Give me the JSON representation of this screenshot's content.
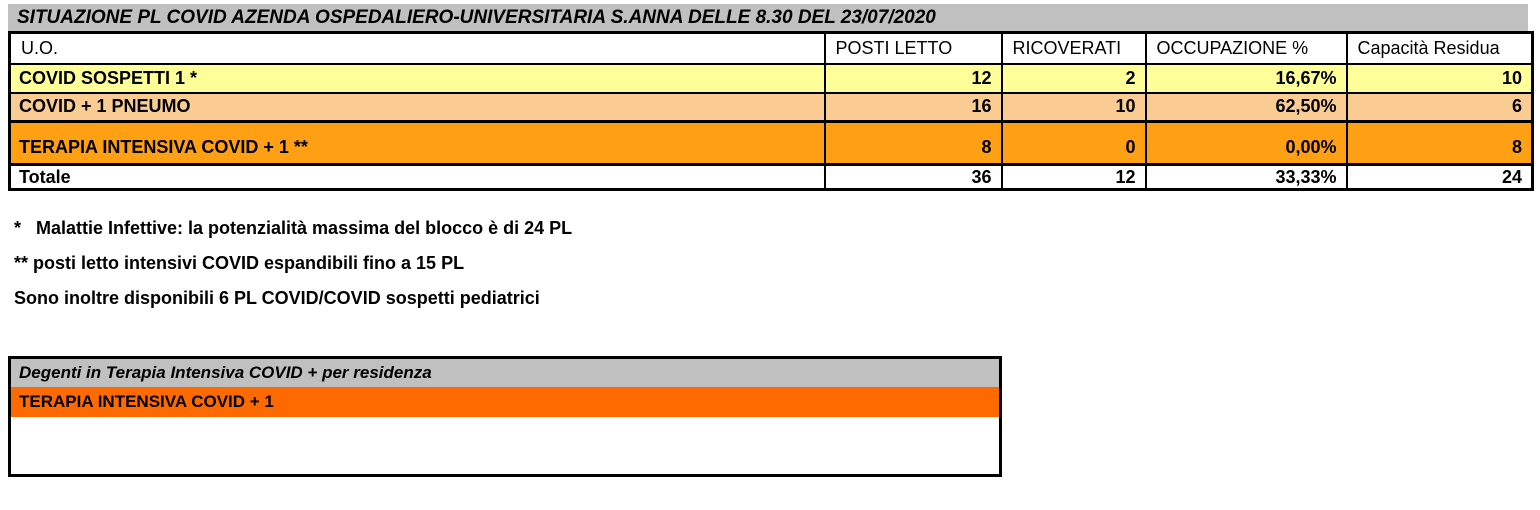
{
  "colors": {
    "page_bg": "#FFFFFF",
    "header_bar_bg": "#C0C0C0",
    "border": "#000000"
  },
  "main_table": {
    "title": "SITUAZIONE PL COVID AZENDA OSPEDALIERO-UNIVERSITARIA S.ANNA DELLE 8.30 DEL 23/07/2020",
    "columns": [
      "U.O.",
      "POSTI LETTO",
      "RICOVERATI",
      "OCCUPAZIONE %",
      "Capacità Residua"
    ],
    "rows": [
      {
        "uo": "COVID SOSPETTI 1 *",
        "posti_letto": "12",
        "ricoverati": "2",
        "occupazione": "16,67%",
        "capacita_residua": "10",
        "bg": "#FFFF99"
      },
      {
        "uo": "COVID + 1 PNEUMO",
        "posti_letto": "16",
        "ricoverati": "10",
        "occupazione": "62,50%",
        "capacita_residua": "6",
        "bg": "#FBCB94"
      },
      {
        "uo": "TERAPIA INTENSIVA COVID + 1 **",
        "posti_letto": "8",
        "ricoverati": "0",
        "occupazione": "0,00%",
        "capacita_residua": "8",
        "bg": "#FFA014"
      },
      {
        "uo": "Totale",
        "posti_letto": "36",
        "ricoverati": "12",
        "occupazione": "33,33%",
        "capacita_residua": "24",
        "bg": "#FFFFFF"
      }
    ]
  },
  "footnotes": [
    "*   Malattie Infettive: la potenzialità massima del blocco è di 24 PL",
    "** posti letto intensivi COVID espandibili fino a 15 PL",
    "Sono inoltre disponibili 6 PL COVID/COVID sospetti pediatrici"
  ],
  "residence_table": {
    "title": "Degenti in Terapia Intensiva COVID + per residenza",
    "rows": [
      {
        "label": "TERAPIA INTENSIVA COVID + 1",
        "bg": "#FF6A00"
      }
    ]
  }
}
